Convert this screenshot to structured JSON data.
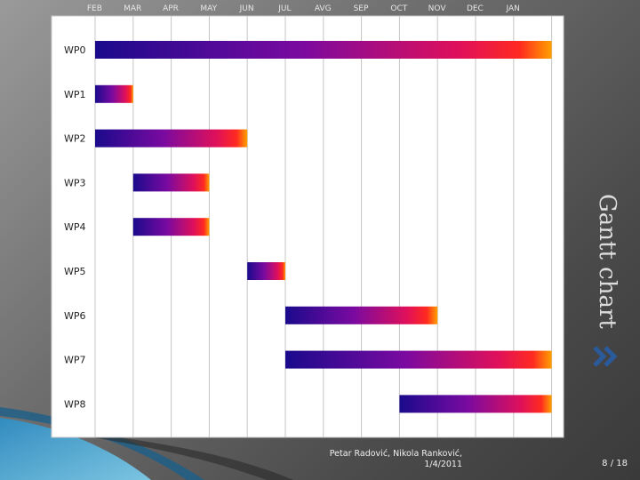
{
  "slide": {
    "side_title": "Gantt chart",
    "footer": {
      "author": "Petar Radović, Nikola Ranković,",
      "date": "1/4/2011"
    },
    "page_number": "8 / 18",
    "accent_colors": {
      "bar_start": "#1a0a8c",
      "bar_mid": "#c0147a",
      "bar_end": "#ff9a00",
      "decor": "#3aa8d8"
    }
  },
  "chart_data": {
    "type": "bar",
    "subtype": "gantt",
    "months": [
      "FEB",
      "MAR",
      "APR",
      "MAY",
      "JUN",
      "JUL",
      "AVG",
      "SEP",
      "OCT",
      "NOV",
      "DEC",
      "JAN"
    ],
    "tasks": [
      {
        "name": "WP0",
        "start_month": 0,
        "duration_months": 12
      },
      {
        "name": "WP1",
        "start_month": 0,
        "duration_months": 1
      },
      {
        "name": "WP2",
        "start_month": 0,
        "duration_months": 4
      },
      {
        "name": "WP3",
        "start_month": 1,
        "duration_months": 2
      },
      {
        "name": "WP4",
        "start_month": 1,
        "duration_months": 2
      },
      {
        "name": "WP5",
        "start_month": 4,
        "duration_months": 1
      },
      {
        "name": "WP6",
        "start_month": 5,
        "duration_months": 4
      },
      {
        "name": "WP7",
        "start_month": 5,
        "duration_months": 7
      },
      {
        "name": "WP8",
        "start_month": 8,
        "duration_months": 4
      }
    ],
    "grid": true,
    "legend": "none"
  }
}
